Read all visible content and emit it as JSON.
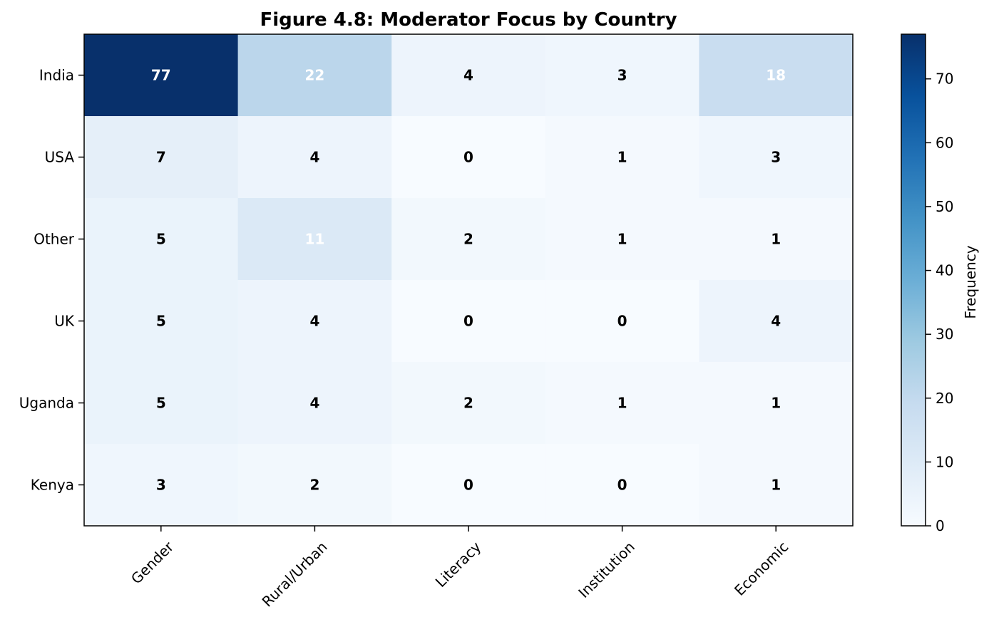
{
  "chart_data": {
    "type": "heatmap",
    "title": "Figure 4.8: Moderator Focus by Country",
    "rows": [
      "India",
      "USA",
      "Other",
      "UK",
      "Uganda",
      "Kenya"
    ],
    "columns": [
      "Gender",
      "Rural/Urban",
      "Literacy",
      "Institution",
      "Economic"
    ],
    "values": [
      [
        77,
        22,
        4,
        3,
        18
      ],
      [
        7,
        4,
        0,
        1,
        3
      ],
      [
        5,
        11,
        2,
        1,
        1
      ],
      [
        5,
        4,
        0,
        0,
        4
      ],
      [
        5,
        4,
        2,
        1,
        1
      ],
      [
        3,
        2,
        0,
        0,
        1
      ]
    ],
    "colorbar": {
      "label": "Frequency",
      "range": [
        0,
        77
      ],
      "ticks": [
        0,
        10,
        20,
        30,
        40,
        50,
        60,
        70
      ],
      "colormap": "Blues",
      "colors": [
        "#f7fbff",
        "#deebf7",
        "#c6dbef",
        "#9ecae1",
        "#6baed6",
        "#4292c6",
        "#2171b5",
        "#08519c",
        "#08306b"
      ]
    },
    "label_text_colors": {
      "light": "#ffffff",
      "dark": "#000000"
    }
  }
}
